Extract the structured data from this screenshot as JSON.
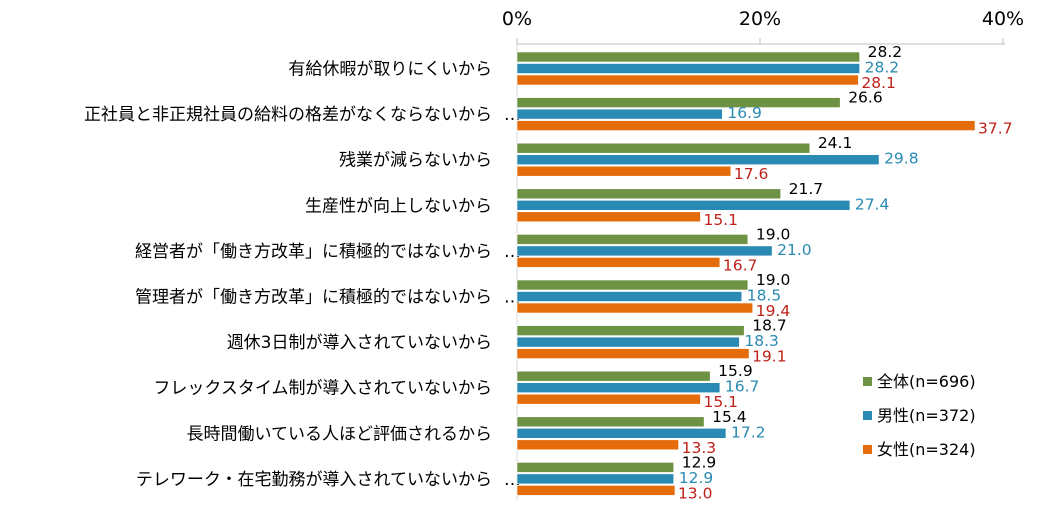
{
  "chart_data": {
    "type": "bar",
    "orientation": "horizontal",
    "categories": [
      "有給休暇が取りにくいから",
      "正社員と非正規社員の給料の格差がなくならないから",
      "残業が減らないから",
      "生産性が向上しないから",
      "経営者が「働き方改革」に積極的ではないから",
      "管理者が「働き方改革」に積極的ではないから",
      "週休3日制が導入されていないから",
      "フレックスタイム制が導入されていないから",
      "長時間働いている人ほど評価されるから",
      "テレワーク・在宅勤務が導入されていないから"
    ],
    "category_display": [
      "有給休暇が取りにくいから",
      "正社員と非正規社員の給料の格差がなくならないから…",
      "残業が減らないから",
      "生産性が向上しないから",
      "経営者が「働き方改革」に積極的ではないから…",
      "管理者が「働き方改革」に積極的ではないから…",
      "週休3日制が導入されていないから",
      "フレックスタイム制が導入されていないから",
      "長時間働いている人ほど評価されるから",
      "テレワーク・在宅勤務が導入されていないから…"
    ],
    "series": [
      {
        "name": "全体(n=696)",
        "color": "#6e9243",
        "label_color": "#000000",
        "values": [
          28.2,
          26.6,
          24.1,
          21.7,
          19.0,
          19.0,
          18.7,
          15.9,
          15.4,
          12.9
        ]
      },
      {
        "name": "男性(n=372)",
        "color": "#2a8ab3",
        "label_color": "#2a8ab3",
        "values": [
          28.2,
          16.9,
          29.8,
          27.4,
          21.0,
          18.5,
          18.3,
          16.7,
          17.2,
          12.9
        ]
      },
      {
        "name": "女性(n=324)",
        "color": "#e46c0a",
        "label_color": "#c0221b",
        "values": [
          28.1,
          37.7,
          17.6,
          15.1,
          16.7,
          19.4,
          19.1,
          15.1,
          13.3,
          13.0
        ]
      }
    ],
    "x_ticks": [
      "0%",
      "20%",
      "40%"
    ],
    "x_tick_values": [
      0,
      20,
      40
    ],
    "xlim": [
      0,
      40
    ],
    "grid": false,
    "legend_position": "bottom-right"
  }
}
